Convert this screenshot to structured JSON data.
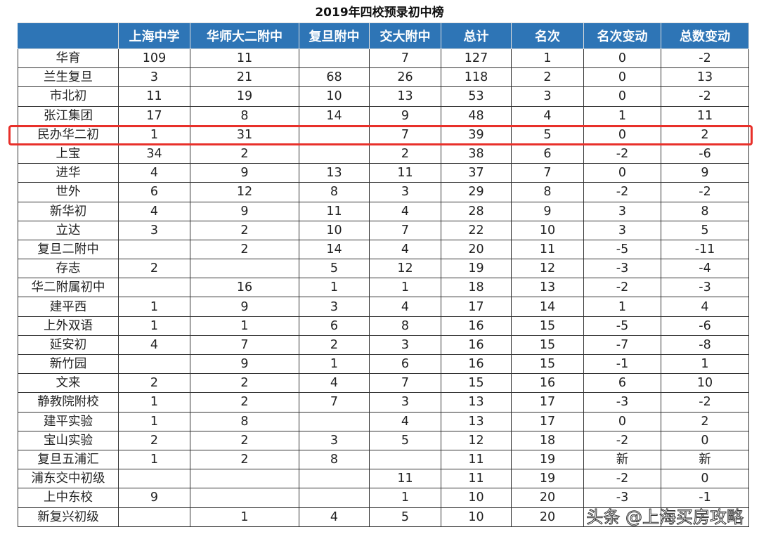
{
  "title": "2019年四校预录初中榜",
  "columns": [
    "",
    "上海中学",
    "华师大二附中",
    "复旦附中",
    "交大附中",
    "总计",
    "名次",
    "名次变动",
    "总数变动"
  ],
  "rows": [
    [
      "华育",
      "109",
      "11",
      "",
      "7",
      "127",
      "1",
      "0",
      "-2"
    ],
    [
      "兰生复旦",
      "3",
      "21",
      "68",
      "26",
      "118",
      "2",
      "0",
      "13"
    ],
    [
      "市北初",
      "11",
      "19",
      "10",
      "13",
      "53",
      "3",
      "0",
      "-2"
    ],
    [
      "张江集团",
      "17",
      "8",
      "14",
      "9",
      "48",
      "4",
      "1",
      "11"
    ],
    [
      "民办华二初",
      "1",
      "31",
      "",
      "7",
      "39",
      "5",
      "0",
      "2"
    ],
    [
      "上宝",
      "34",
      "2",
      "",
      "2",
      "38",
      "6",
      "-2",
      "-6"
    ],
    [
      "进华",
      "4",
      "9",
      "13",
      "11",
      "37",
      "7",
      "0",
      "9"
    ],
    [
      "世外",
      "6",
      "12",
      "8",
      "3",
      "29",
      "8",
      "-2",
      "-2"
    ],
    [
      "新华初",
      "4",
      "9",
      "11",
      "4",
      "28",
      "9",
      "3",
      "8"
    ],
    [
      "立达",
      "3",
      "2",
      "10",
      "7",
      "22",
      "10",
      "3",
      "5"
    ],
    [
      "复旦二附中",
      "",
      "2",
      "14",
      "4",
      "20",
      "11",
      "-5",
      "-11"
    ],
    [
      "存志",
      "2",
      "",
      "5",
      "12",
      "19",
      "12",
      "-3",
      "-4"
    ],
    [
      "华二附属初中",
      "",
      "16",
      "1",
      "1",
      "18",
      "13",
      "-2",
      "-3"
    ],
    [
      "建平西",
      "1",
      "9",
      "3",
      "4",
      "17",
      "14",
      "1",
      "4"
    ],
    [
      "上外双语",
      "1",
      "1",
      "6",
      "8",
      "16",
      "15",
      "-5",
      "-6"
    ],
    [
      "延安初",
      "4",
      "7",
      "2",
      "3",
      "16",
      "15",
      "-7",
      "-8"
    ],
    [
      "新竹园",
      "",
      "9",
      "1",
      "6",
      "16",
      "15",
      "-1",
      "1"
    ],
    [
      "文来",
      "2",
      "2",
      "4",
      "7",
      "15",
      "16",
      "6",
      "10"
    ],
    [
      "静教院附校",
      "1",
      "2",
      "7",
      "3",
      "13",
      "17",
      "-3",
      "-2"
    ],
    [
      "建平实验",
      "1",
      "8",
      "",
      "4",
      "13",
      "17",
      "0",
      "2"
    ],
    [
      "宝山实验",
      "2",
      "2",
      "3",
      "5",
      "12",
      "18",
      "-2",
      "0"
    ],
    [
      "复旦五浦汇",
      "1",
      "2",
      "8",
      "",
      "11",
      "19",
      "新",
      "新"
    ],
    [
      "浦东交中初级",
      "",
      "",
      "",
      "11",
      "11",
      "19",
      "-2",
      "0"
    ],
    [
      "上中东校",
      "9",
      "",
      "",
      "1",
      "10",
      "20",
      "-3",
      "-1"
    ],
    [
      "新复兴初级",
      "",
      "1",
      "4",
      "5",
      "10",
      "20",
      "",
      ""
    ]
  ],
  "highlighted_row": "民办华二初",
  "watermark": "头条 @上海买房攻略",
  "colors": {
    "header_bg": "#2e75b6",
    "highlight": "#e8302a"
  }
}
